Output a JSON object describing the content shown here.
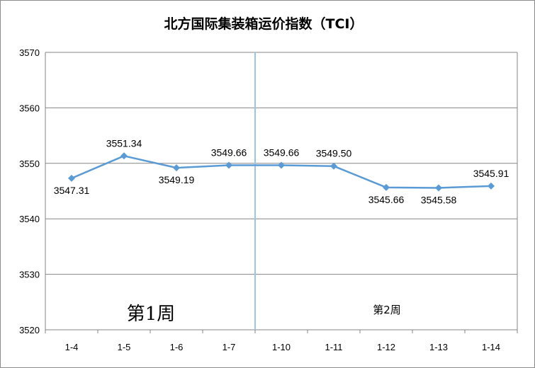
{
  "chart_data": {
    "type": "line",
    "title": "北方国际集装箱运价指数（TCI）",
    "categories": [
      "1-4",
      "1-5",
      "1-6",
      "1-7",
      "1-10",
      "1-11",
      "1-12",
      "1-13",
      "1-14"
    ],
    "series": [
      {
        "values": [
          3547.31,
          3551.34,
          3549.19,
          3549.66,
          3549.66,
          3549.5,
          3545.66,
          3545.58,
          3545.91
        ],
        "labels": [
          "3547.31",
          "3551.34",
          "3549.19",
          "3549.66",
          "3549.66",
          "3549.50",
          "3545.66",
          "3545.58",
          "3545.91"
        ]
      }
    ],
    "ylim": [
      3520,
      3570
    ],
    "yticks": [
      "3520",
      "3530",
      "3540",
      "3550",
      "3560",
      "3570"
    ],
    "grid": true,
    "annotations": {
      "week1": "第1周",
      "week2": "第2周"
    },
    "colors": {
      "line": "#5b9bd5",
      "grid": "#868686",
      "divider": "#9dc3e6"
    }
  }
}
